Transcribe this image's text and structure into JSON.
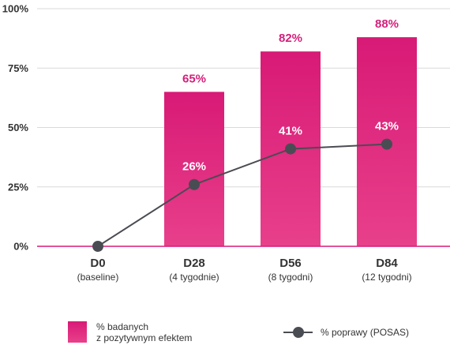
{
  "chart_data": {
    "type": "bar",
    "categories": [
      {
        "label": "D0",
        "sublabel": "(baseline)"
      },
      {
        "label": "D28",
        "sublabel": "(4 tygodnie)"
      },
      {
        "label": "D56",
        "sublabel": "(8 tygodni)"
      },
      {
        "label": "D84",
        "sublabel": "(12 tygodni)"
      }
    ],
    "series": [
      {
        "name": "% badanych z pozytywnym efektem",
        "name_lines": [
          "% badanych",
          "z pozytywnym efektem"
        ],
        "type": "bar",
        "values": [
          null,
          65,
          82,
          88
        ],
        "labels": [
          "",
          "65%",
          "82%",
          "88%"
        ]
      },
      {
        "name": "% poprawy (POSAS)",
        "type": "line",
        "values": [
          0,
          26,
          41,
          43
        ],
        "labels": [
          "",
          "26%",
          "41%",
          "43%"
        ]
      }
    ],
    "y_ticks": [
      {
        "value": 0,
        "label": "0%"
      },
      {
        "value": 25,
        "label": "25%"
      },
      {
        "value": 50,
        "label": "50%"
      },
      {
        "value": 75,
        "label": "75%"
      },
      {
        "value": 100,
        "label": "100%"
      }
    ],
    "ylim": [
      0,
      100
    ],
    "grid": true,
    "legend_position": "bottom",
    "colors": {
      "bar_top": "#d81a76",
      "bar_bottom": "#e8408b",
      "bar_label": "#d4207a",
      "line": "#4a4c53",
      "marker": "#4a4c53",
      "baseline": "#d81a76",
      "grid": "#d9d9d9",
      "text": "#333333"
    }
  }
}
